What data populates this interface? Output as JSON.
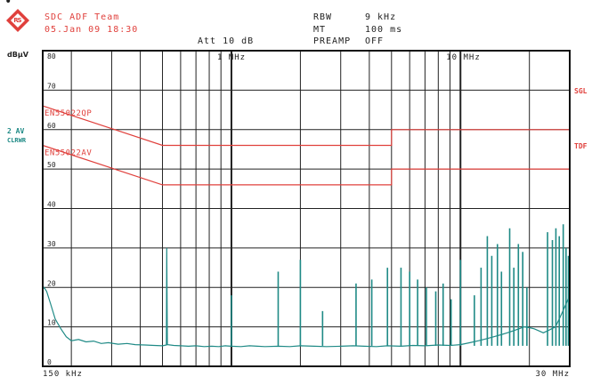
{
  "header": {
    "dot": "•",
    "team": "SDC ADF Team",
    "datetime": "05.Jan 09 18:30",
    "rbw_label": "RBW",
    "rbw_value": "9 kHz",
    "mt_label": "MT",
    "mt_value": "100 ms",
    "att_label": "Att 10 dB",
    "preamp_label": "PREAMP",
    "preamp_value": "OFF",
    "unit": "dBµV"
  },
  "side_labels": {
    "trace_av": "2 AV",
    "trace_mode": "CLRWR",
    "sgl": "SGL",
    "tdf": "TDF"
  },
  "limit_labels": {
    "qp": "EN55022QP",
    "av": "EN55022AV"
  },
  "chart_data": {
    "type": "line",
    "title": "",
    "xlabel": "",
    "ylabel": "dBµV",
    "x_scale": "log",
    "xlim_hz": [
      150000,
      30000000
    ],
    "ylim": [
      0,
      80
    ],
    "y_ticks": [
      "0",
      "10",
      "20",
      "30",
      "40",
      "50",
      "60",
      "70",
      "80"
    ],
    "x_tick_start": "150 kHz",
    "x_tick_end": "30 MHz",
    "x_markers": [
      "1 MHz",
      "10 MHz"
    ],
    "grid": true,
    "series": [
      {
        "name": "EN55022QP",
        "color": "#e0403c",
        "x": [
          150000,
          500000,
          500000,
          5000000,
          5000000,
          30000000
        ],
        "y": [
          66,
          56,
          56,
          56,
          60,
          60
        ]
      },
      {
        "name": "EN55022AV",
        "color": "#e0403c",
        "x": [
          150000,
          500000,
          500000,
          5000000,
          5000000,
          30000000
        ],
        "y": [
          56,
          46,
          46,
          46,
          50,
          50
        ]
      },
      {
        "name": "2 AV",
        "color": "#1f8a86",
        "x": [
          150000,
          152000,
          156000,
          162000,
          170000,
          180000,
          190000,
          200000,
          215000,
          232000,
          250000,
          270000,
          290000,
          320000,
          350000,
          380000,
          420000,
          460000,
          500000,
          520000,
          522000,
          525000,
          560000,
          600000,
          650000,
          700000,
          760000,
          820000,
          880000,
          940000,
          1000000,
          1100000,
          1200000,
          1300000,
          1400000,
          1600000,
          1800000,
          2000000,
          2300000,
          2600000,
          3000000,
          3400000,
          3800000,
          4300000,
          4800000,
          5500000,
          6200000,
          7000000,
          8000000,
          9000000,
          10000000,
          11000000,
          12000000,
          13000000,
          14000000,
          15000000,
          16000000,
          17000000,
          18000000,
          19000000,
          20000000,
          21000000,
          22000000,
          23000000,
          24000000,
          25000000,
          26000000,
          27000000,
          28000000,
          29000000,
          30000000
        ],
        "y": [
          19.5,
          20,
          19,
          16,
          12,
          9.5,
          7.5,
          6.5,
          6.8,
          6.2,
          6.4,
          5.8,
          6,
          5.6,
          5.8,
          5.5,
          5.4,
          5.3,
          5.2,
          5.4,
          30,
          5.5,
          5.3,
          5.2,
          5.1,
          5.2,
          5,
          5.1,
          5,
          5.2,
          5.1,
          5,
          5.2,
          5.1,
          5,
          5.1,
          5,
          5.2,
          5.1,
          5,
          5.1,
          5.2,
          5.1,
          5,
          5.2,
          5.1,
          5.3,
          5.2,
          5.4,
          5.3,
          5.5,
          6,
          6.5,
          7,
          7.5,
          8,
          8.5,
          9,
          9.5,
          10,
          9.8,
          9.5,
          9,
          8.5,
          9,
          9.5,
          10,
          12,
          14,
          16,
          18
        ]
      }
    ],
    "peaks": [
      {
        "x": 1000000,
        "y": 18
      },
      {
        "x": 1600000,
        "y": 24
      },
      {
        "x": 2000000,
        "y": 27
      },
      {
        "x": 2500000,
        "y": 14
      },
      {
        "x": 3500000,
        "y": 21
      },
      {
        "x": 4100000,
        "y": 22
      },
      {
        "x": 4800000,
        "y": 25
      },
      {
        "x": 5500000,
        "y": 25
      },
      {
        "x": 6000000,
        "y": 24
      },
      {
        "x": 6500000,
        "y": 22
      },
      {
        "x": 7100000,
        "y": 20
      },
      {
        "x": 7800000,
        "y": 19
      },
      {
        "x": 8400000,
        "y": 21
      },
      {
        "x": 9100000,
        "y": 17
      },
      {
        "x": 10000000,
        "y": 27
      },
      {
        "x": 11500000,
        "y": 18
      },
      {
        "x": 12300000,
        "y": 25
      },
      {
        "x": 13100000,
        "y": 33
      },
      {
        "x": 13700000,
        "y": 28
      },
      {
        "x": 14500000,
        "y": 31
      },
      {
        "x": 15100000,
        "y": 24
      },
      {
        "x": 16400000,
        "y": 35
      },
      {
        "x": 17100000,
        "y": 25
      },
      {
        "x": 17900000,
        "y": 31
      },
      {
        "x": 18700000,
        "y": 29
      },
      {
        "x": 19500000,
        "y": 20
      },
      {
        "x": 24000000,
        "y": 34
      },
      {
        "x": 25200000,
        "y": 32
      },
      {
        "x": 26100000,
        "y": 35
      },
      {
        "x": 27000000,
        "y": 33
      },
      {
        "x": 28100000,
        "y": 36
      },
      {
        "x": 28900000,
        "y": 30
      },
      {
        "x": 29600000,
        "y": 28
      }
    ]
  },
  "colors": {
    "header": "#e0403c",
    "trace": "#1f8a86",
    "limit": "#e0403c",
    "grid": "#222222",
    "frame": "#111111"
  },
  "icons": {
    "logo": "rohde-schwarz-diamond-logo"
  }
}
